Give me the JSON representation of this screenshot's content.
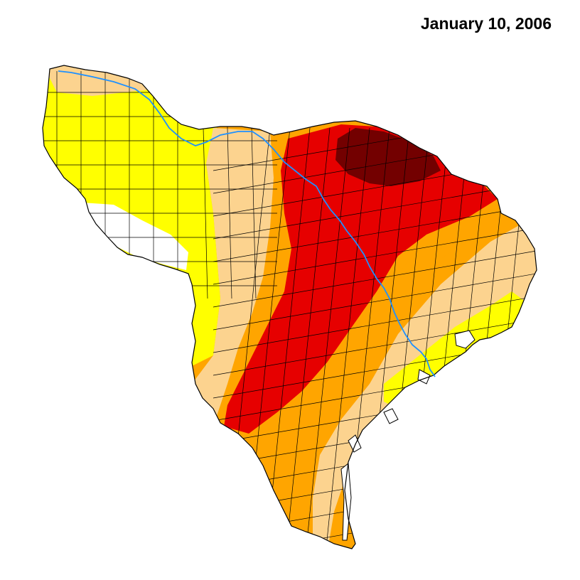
{
  "title": "January 10, 2006",
  "colors": {
    "none": "#ffffff",
    "abnormally_dry": "#ffff00",
    "moderate": "#fcd38f",
    "severe": "#ffa500",
    "extreme": "#e60000",
    "exceptional": "#730000",
    "river": "#1e90ff",
    "outline": "#000000"
  },
  "layers": [
    {
      "name": "abnormally-dry",
      "color_key": "abnormally_dry"
    },
    {
      "name": "moderate-drought",
      "color_key": "moderate"
    },
    {
      "name": "severe-drought",
      "color_key": "severe"
    },
    {
      "name": "extreme-drought",
      "color_key": "extreme"
    },
    {
      "name": "exceptional-drought",
      "color_key": "exceptional"
    }
  ]
}
